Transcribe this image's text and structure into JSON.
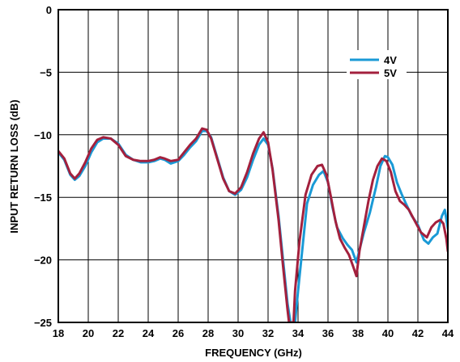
{
  "chart_data": {
    "type": "line",
    "title": "",
    "xlabel": "FREQUENCY (GHz)",
    "ylabel": "INPUT RETURN LOSS (dB)",
    "xlim": [
      18,
      44
    ],
    "ylim": [
      -25,
      0
    ],
    "x_ticks": [
      "18",
      "20",
      "22",
      "24",
      "26",
      "28",
      "30",
      "32",
      "34",
      "36",
      "38",
      "40",
      "42",
      "44"
    ],
    "y_ticks": [
      "0",
      "−5",
      "−10",
      "−15",
      "−20",
      "−25"
    ],
    "grid": true,
    "legend_position": "upper-right",
    "series": [
      {
        "name": "4V",
        "color": "#1a9ad6",
        "points": [
          [
            18.0,
            -11.4
          ],
          [
            18.4,
            -12.0
          ],
          [
            18.8,
            -13.2
          ],
          [
            19.1,
            -13.6
          ],
          [
            19.4,
            -13.3
          ],
          [
            19.8,
            -12.5
          ],
          [
            20.2,
            -11.4
          ],
          [
            20.6,
            -10.6
          ],
          [
            21.0,
            -10.3
          ],
          [
            21.5,
            -10.3
          ],
          [
            22.0,
            -10.7
          ],
          [
            22.5,
            -11.6
          ],
          [
            23.0,
            -12.0
          ],
          [
            23.5,
            -12.2
          ],
          [
            24.0,
            -12.2
          ],
          [
            24.4,
            -12.1
          ],
          [
            24.8,
            -11.9
          ],
          [
            25.1,
            -12.0
          ],
          [
            25.5,
            -12.3
          ],
          [
            26.0,
            -12.1
          ],
          [
            26.4,
            -11.6
          ],
          [
            26.8,
            -11.0
          ],
          [
            27.2,
            -10.5
          ],
          [
            27.6,
            -9.7
          ],
          [
            27.9,
            -9.7
          ],
          [
            28.2,
            -10.2
          ],
          [
            28.6,
            -11.8
          ],
          [
            29.0,
            -13.4
          ],
          [
            29.4,
            -14.5
          ],
          [
            29.8,
            -14.8
          ],
          [
            30.2,
            -14.4
          ],
          [
            30.6,
            -13.4
          ],
          [
            31.0,
            -12.0
          ],
          [
            31.4,
            -10.8
          ],
          [
            31.7,
            -10.3
          ],
          [
            32.0,
            -10.8
          ],
          [
            32.3,
            -12.7
          ],
          [
            32.7,
            -16.5
          ],
          [
            33.0,
            -20.0
          ],
          [
            33.3,
            -23.5
          ],
          [
            33.5,
            -25.0
          ],
          [
            33.8,
            -25.0
          ],
          [
            34.0,
            -22.5
          ],
          [
            34.3,
            -19.0
          ],
          [
            34.6,
            -15.5
          ],
          [
            35.0,
            -14.0
          ],
          [
            35.4,
            -13.2
          ],
          [
            35.7,
            -12.9
          ],
          [
            36.0,
            -13.8
          ],
          [
            36.3,
            -15.8
          ],
          [
            36.6,
            -17.4
          ],
          [
            37.0,
            -18.3
          ],
          [
            37.3,
            -18.8
          ],
          [
            37.6,
            -19.2
          ],
          [
            37.9,
            -20.2
          ],
          [
            38.1,
            -19.2
          ],
          [
            38.4,
            -17.8
          ],
          [
            38.8,
            -16.2
          ],
          [
            39.2,
            -14.2
          ],
          [
            39.5,
            -12.5
          ],
          [
            39.8,
            -11.7
          ],
          [
            40.0,
            -11.8
          ],
          [
            40.3,
            -12.4
          ],
          [
            40.6,
            -13.8
          ],
          [
            40.9,
            -14.7
          ],
          [
            41.2,
            -15.5
          ],
          [
            41.6,
            -16.5
          ],
          [
            42.0,
            -17.2
          ],
          [
            42.4,
            -18.4
          ],
          [
            42.7,
            -18.7
          ],
          [
            43.0,
            -18.2
          ],
          [
            43.3,
            -17.9
          ],
          [
            43.6,
            -16.5
          ],
          [
            43.8,
            -16.0
          ],
          [
            44.0,
            -17.5
          ]
        ]
      },
      {
        "name": "5V",
        "color": "#a3203d",
        "points": [
          [
            18.0,
            -11.3
          ],
          [
            18.4,
            -11.9
          ],
          [
            18.8,
            -13.1
          ],
          [
            19.1,
            -13.5
          ],
          [
            19.4,
            -13.1
          ],
          [
            19.8,
            -12.2
          ],
          [
            20.2,
            -11.1
          ],
          [
            20.6,
            -10.4
          ],
          [
            21.0,
            -10.2
          ],
          [
            21.5,
            -10.3
          ],
          [
            22.0,
            -10.8
          ],
          [
            22.5,
            -11.7
          ],
          [
            23.0,
            -12.0
          ],
          [
            23.5,
            -12.1
          ],
          [
            24.0,
            -12.1
          ],
          [
            24.4,
            -12.0
          ],
          [
            24.8,
            -11.8
          ],
          [
            25.1,
            -11.9
          ],
          [
            25.5,
            -12.1
          ],
          [
            26.0,
            -12.0
          ],
          [
            26.4,
            -11.4
          ],
          [
            26.8,
            -10.8
          ],
          [
            27.2,
            -10.3
          ],
          [
            27.6,
            -9.5
          ],
          [
            27.9,
            -9.6
          ],
          [
            28.2,
            -10.3
          ],
          [
            28.6,
            -11.9
          ],
          [
            29.0,
            -13.5
          ],
          [
            29.4,
            -14.5
          ],
          [
            29.8,
            -14.7
          ],
          [
            30.2,
            -14.2
          ],
          [
            30.6,
            -13.0
          ],
          [
            31.0,
            -11.5
          ],
          [
            31.4,
            -10.3
          ],
          [
            31.7,
            -9.8
          ],
          [
            32.0,
            -10.6
          ],
          [
            32.3,
            -12.8
          ],
          [
            32.7,
            -16.8
          ],
          [
            33.0,
            -20.5
          ],
          [
            33.3,
            -24.0
          ],
          [
            33.4,
            -25.0
          ],
          [
            33.7,
            -25.0
          ],
          [
            33.8,
            -22.5
          ],
          [
            34.1,
            -18.5
          ],
          [
            34.5,
            -14.8
          ],
          [
            34.9,
            -13.2
          ],
          [
            35.3,
            -12.5
          ],
          [
            35.6,
            -12.4
          ],
          [
            35.9,
            -13.2
          ],
          [
            36.2,
            -15.0
          ],
          [
            36.5,
            -16.9
          ],
          [
            36.8,
            -18.3
          ],
          [
            37.1,
            -19.0
          ],
          [
            37.4,
            -19.6
          ],
          [
            37.7,
            -20.6
          ],
          [
            37.9,
            -21.3
          ],
          [
            38.1,
            -19.3
          ],
          [
            38.4,
            -17.3
          ],
          [
            38.7,
            -15.3
          ],
          [
            39.0,
            -13.6
          ],
          [
            39.3,
            -12.5
          ],
          [
            39.6,
            -11.9
          ],
          [
            39.9,
            -12.1
          ],
          [
            40.2,
            -13.0
          ],
          [
            40.5,
            -14.5
          ],
          [
            40.8,
            -15.3
          ],
          [
            41.1,
            -15.6
          ],
          [
            41.4,
            -16.0
          ],
          [
            41.8,
            -16.9
          ],
          [
            42.2,
            -17.8
          ],
          [
            42.6,
            -18.2
          ],
          [
            42.9,
            -17.4
          ],
          [
            43.2,
            -17.0
          ],
          [
            43.5,
            -16.8
          ],
          [
            43.7,
            -17.1
          ],
          [
            43.9,
            -18.3
          ],
          [
            44.0,
            -19.3
          ]
        ]
      }
    ]
  }
}
